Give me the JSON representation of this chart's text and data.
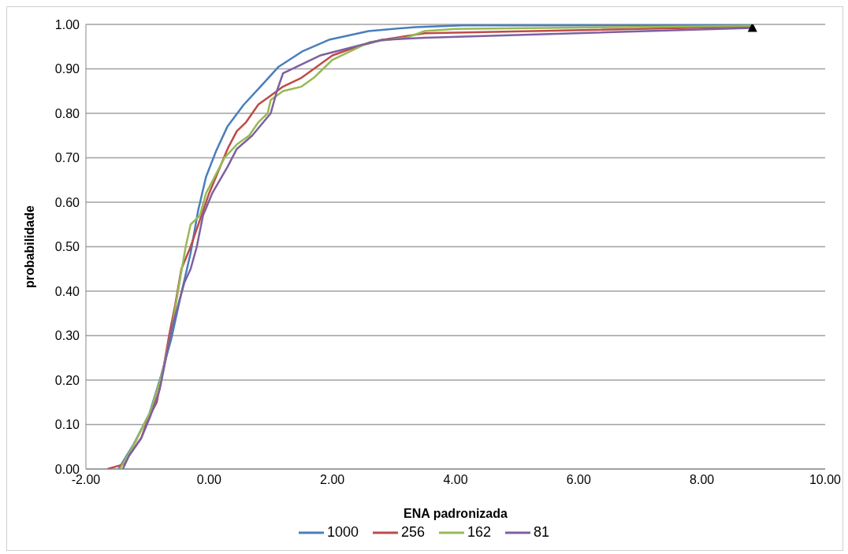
{
  "chart_data": {
    "type": "line",
    "xlabel": "ENA padronizada",
    "ylabel": "probabilidade",
    "grid": "y",
    "legend": "bottom",
    "marker": "none",
    "line_style": "solid",
    "xlim": [
      -2,
      10
    ],
    "xticks": [
      {
        "value": -2,
        "label": "-2.00"
      },
      {
        "value": 0,
        "label": "0.00"
      },
      {
        "value": 2,
        "label": "2.00"
      },
      {
        "value": 4,
        "label": "4.00"
      },
      {
        "value": 6,
        "label": "6.00"
      },
      {
        "value": 8,
        "label": "8.00"
      },
      {
        "value": 10,
        "label": "10.00"
      }
    ],
    "ylim": [
      0,
      1
    ],
    "yticks": [
      {
        "value": 0,
        "label": "0.00"
      },
      {
        "value": 0.1,
        "label": "0.10"
      },
      {
        "value": 0.2,
        "label": "0.20"
      },
      {
        "value": 0.3,
        "label": "0.30"
      },
      {
        "value": 0.4,
        "label": "0.40"
      },
      {
        "value": 0.5,
        "label": "0.50"
      },
      {
        "value": 0.6,
        "label": "0.60"
      },
      {
        "value": 0.7,
        "label": "0.70"
      },
      {
        "value": 0.8,
        "label": "0.80"
      },
      {
        "value": 0.9,
        "label": "0.90"
      },
      {
        "value": 1,
        "label": "1.00"
      }
    ],
    "series": [
      {
        "name": "1000",
        "color": "#4a7ebb",
        "x": [
          -1.47,
          -1.22,
          -0.97,
          -0.78,
          -0.61,
          -0.46,
          -0.3,
          -0.18,
          -0.05,
          0.11,
          0.3,
          0.56,
          0.88,
          1.13,
          1.51,
          1.96,
          2.59,
          3.35,
          4.12,
          8.82
        ],
        "values": [
          0,
          0.057,
          0.124,
          0.21,
          0.295,
          0.39,
          0.486,
          0.58,
          0.657,
          0.714,
          0.771,
          0.819,
          0.867,
          0.905,
          0.939,
          0.966,
          0.985,
          0.994,
          0.998,
          0.998
        ]
      },
      {
        "name": "256",
        "color": "#be4b48",
        "x": [
          -1.65,
          -1.4,
          -1.3,
          -1.1,
          -1,
          -0.85,
          -0.75,
          -0.65,
          -0.55,
          -0.45,
          -0.3,
          -0.15,
          0,
          0.15,
          0.3,
          0.45,
          0.6,
          0.8,
          1,
          1.2,
          1.5,
          1.7,
          2,
          2.4,
          2.8,
          3.5,
          8.82
        ],
        "values": [
          0,
          0.01,
          0.03,
          0.07,
          0.11,
          0.15,
          0.22,
          0.3,
          0.37,
          0.45,
          0.5,
          0.56,
          0.62,
          0.67,
          0.72,
          0.76,
          0.78,
          0.82,
          0.84,
          0.86,
          0.88,
          0.9,
          0.93,
          0.95,
          0.965,
          0.98,
          0.995
        ]
      },
      {
        "name": "162",
        "color": "#98b954",
        "x": [
          -1.45,
          -1.2,
          -0.95,
          -0.75,
          -0.6,
          -0.48,
          -0.38,
          -0.3,
          -0.15,
          -0.05,
          0.1,
          0.25,
          0.45,
          0.65,
          0.8,
          0.95,
          1,
          1.2,
          1.5,
          1.7,
          1.85,
          2,
          2.3,
          2.6,
          3.2,
          3.5,
          4,
          8.82
        ],
        "values": [
          0,
          0.06,
          0.13,
          0.22,
          0.32,
          0.42,
          0.5,
          0.55,
          0.57,
          0.62,
          0.66,
          0.7,
          0.73,
          0.75,
          0.78,
          0.8,
          0.83,
          0.85,
          0.86,
          0.88,
          0.9,
          0.92,
          0.94,
          0.96,
          0.97,
          0.985,
          0.99,
          0.997
        ]
      },
      {
        "name": "81",
        "color": "#7d60a0",
        "x": [
          -1.4,
          -1.3,
          -1.1,
          -0.95,
          -0.8,
          -0.7,
          -0.6,
          -0.5,
          -0.4,
          -0.3,
          -0.2,
          -0.1,
          0.05,
          0.3,
          0.45,
          0.7,
          1,
          1.1,
          1.2,
          1.5,
          1.8,
          2.5,
          2.8,
          3.5,
          8.82
        ],
        "values": [
          0,
          0.03,
          0.07,
          0.12,
          0.18,
          0.25,
          0.32,
          0.37,
          0.42,
          0.45,
          0.5,
          0.57,
          0.62,
          0.68,
          0.72,
          0.75,
          0.8,
          0.85,
          0.89,
          0.91,
          0.93,
          0.955,
          0.965,
          0.97,
          0.992
        ]
      },
      {
        "type": "scatter",
        "color": "#000000",
        "marker": "triangle",
        "x": [
          8.82
        ],
        "values": [
          0.992
        ]
      }
    ]
  }
}
